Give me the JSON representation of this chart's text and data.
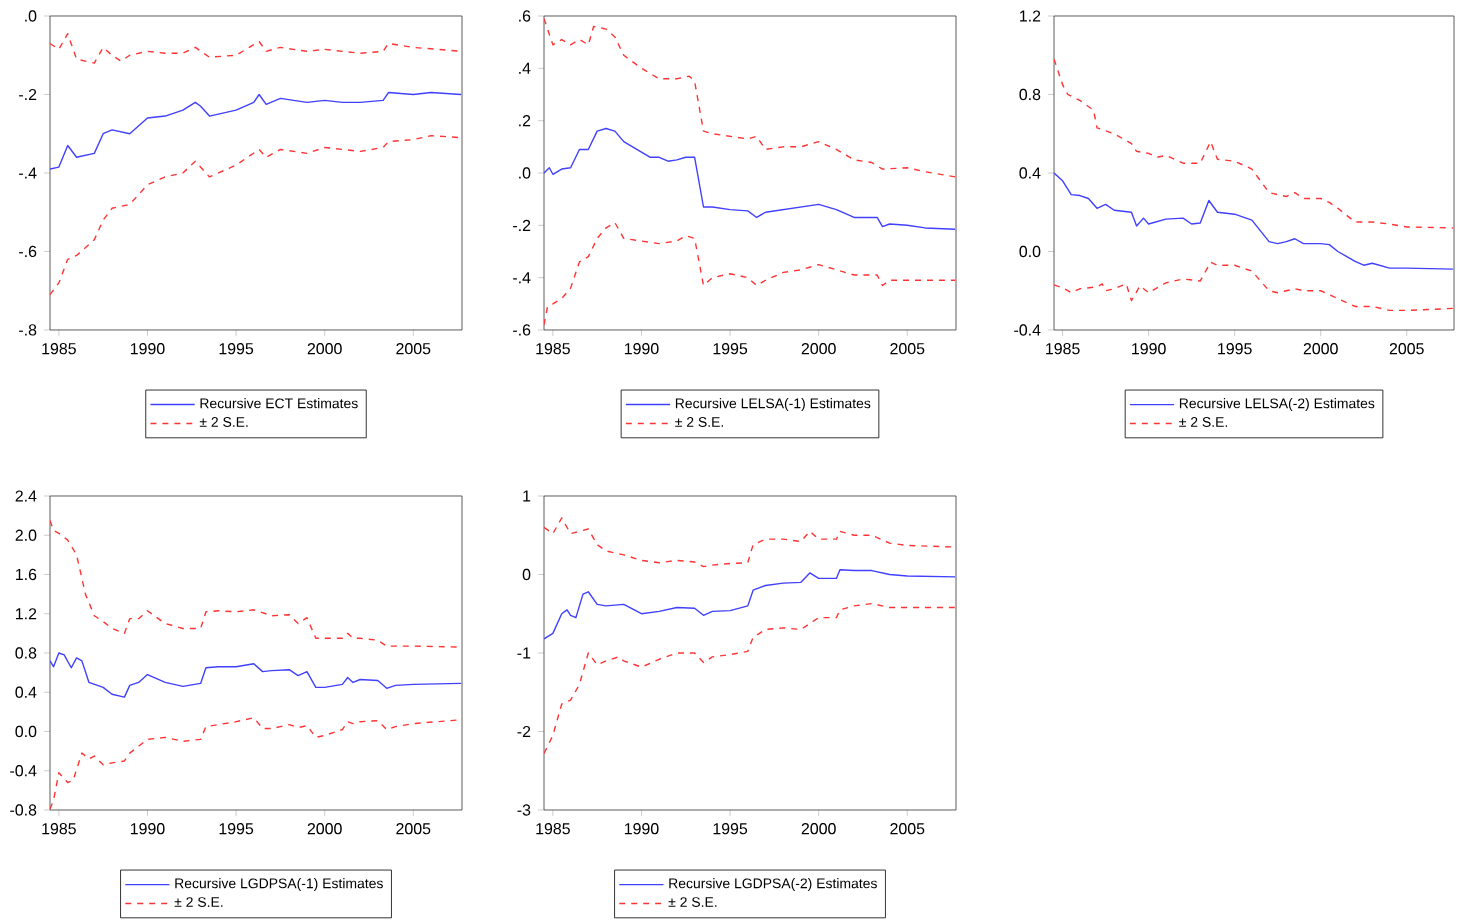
{
  "chart_data": [
    {
      "type": "line",
      "legend": "bottom",
      "xlim": [
        1984.5,
        2007.75
      ],
      "xticks": [
        1985,
        1990,
        1995,
        2000,
        2005
      ],
      "ylim": [
        -0.8,
        0
      ],
      "yticks": [
        {
          "value": -0.8,
          "label": "-.8"
        },
        {
          "value": -0.6,
          "label": "-.6"
        },
        {
          "value": -0.4,
          "label": "-.4"
        },
        {
          "value": -0.2,
          "label": "-.2"
        },
        {
          "value": 0,
          "label": ".0"
        }
      ],
      "series": [
        {
          "name": "Recursive ECT Estimates",
          "color": "#4040ff",
          "line_style": "solid",
          "x": [
            1984.5,
            1985,
            1985.5,
            1986,
            1987,
            1987.5,
            1988,
            1989,
            1990,
            1991,
            1992,
            1992.7,
            1993,
            1993.5,
            1995,
            1996,
            1996.3,
            1996.7,
            1997.5,
            1999,
            2000,
            2001,
            2002,
            2003.3,
            2003.6,
            2005,
            2006,
            2007.7
          ],
          "values": [
            -0.39,
            -0.385,
            -0.33,
            -0.36,
            -0.35,
            -0.3,
            -0.29,
            -0.3,
            -0.26,
            -0.255,
            -0.24,
            -0.22,
            -0.23,
            -0.255,
            -0.24,
            -0.22,
            -0.2,
            -0.225,
            -0.21,
            -0.22,
            -0.215,
            -0.22,
            -0.22,
            -0.215,
            -0.195,
            -0.2,
            -0.195,
            -0.2
          ]
        },
        {
          "name": "± 2 S.E.",
          "color": "#ff3333",
          "line_style": "dashed",
          "x": [
            1984.5,
            1985,
            1985.5,
            1986,
            1987,
            1987.5,
            1988,
            1988.5,
            1989,
            1990,
            1991,
            1992,
            1992.7,
            1993.5,
            1995,
            1996.3,
            1996.7,
            1997.5,
            1999,
            2000,
            2002,
            2003.3,
            2003.6,
            2005,
            2007.7
          ],
          "values": [
            -0.07,
            -0.085,
            -0.045,
            -0.11,
            -0.12,
            -0.08,
            -0.1,
            -0.115,
            -0.1,
            -0.09,
            -0.095,
            -0.095,
            -0.08,
            -0.105,
            -0.1,
            -0.065,
            -0.09,
            -0.08,
            -0.09,
            -0.085,
            -0.095,
            -0.09,
            -0.07,
            -0.08,
            -0.09
          ]
        },
        {
          "color": "#ff3333",
          "line_style": "dashed",
          "x": [
            1984.5,
            1985,
            1985.5,
            1986,
            1987,
            1987.5,
            1988,
            1989,
            1990,
            1991,
            1992,
            1992.7,
            1993.5,
            1995,
            1996.3,
            1996.7,
            1997.5,
            1999,
            2000,
            2002,
            2003.3,
            2003.6,
            2005,
            2006,
            2007.7
          ],
          "values": [
            -0.71,
            -0.68,
            -0.62,
            -0.61,
            -0.57,
            -0.52,
            -0.49,
            -0.48,
            -0.43,
            -0.41,
            -0.4,
            -0.37,
            -0.41,
            -0.38,
            -0.34,
            -0.36,
            -0.34,
            -0.35,
            -0.335,
            -0.345,
            -0.335,
            -0.32,
            -0.315,
            -0.305,
            -0.31
          ]
        }
      ]
    },
    {
      "type": "line",
      "legend": "bottom",
      "xlim": [
        1984.5,
        2007.75
      ],
      "xticks": [
        1985,
        1990,
        1995,
        2000,
        2005
      ],
      "ylim": [
        -0.6,
        0.6
      ],
      "yticks": [
        {
          "value": -0.6,
          "label": "-.6"
        },
        {
          "value": -0.4,
          "label": "-.4"
        },
        {
          "value": -0.2,
          "label": "-.2"
        },
        {
          "value": 0,
          "label": ".0"
        },
        {
          "value": 0.2,
          "label": ".2"
        },
        {
          "value": 0.4,
          "label": ".4"
        },
        {
          "value": 0.6,
          "label": ".6"
        }
      ],
      "series": [
        {
          "name": "Recursive LELSA(-1) Estimates",
          "color": "#4040ff",
          "line_style": "solid",
          "x": [
            1984.5,
            1984.8,
            1985,
            1985.5,
            1986,
            1986.5,
            1987,
            1987.5,
            1988,
            1988.5,
            1989,
            1990,
            1990.5,
            1991,
            1991.5,
            1992,
            1992.5,
            1993,
            1993.5,
            1994,
            1995,
            1996,
            1996.5,
            1997,
            1998,
            1999,
            2000,
            2001,
            2002,
            2003.3,
            2003.6,
            2004,
            2005,
            2006,
            2007.7
          ],
          "values": [
            0.0,
            0.02,
            -0.005,
            0.015,
            0.02,
            0.09,
            0.09,
            0.16,
            0.17,
            0.16,
            0.12,
            0.08,
            0.06,
            0.06,
            0.045,
            0.05,
            0.06,
            0.06,
            -0.13,
            -0.13,
            -0.14,
            -0.145,
            -0.17,
            -0.15,
            -0.14,
            -0.13,
            -0.12,
            -0.14,
            -0.17,
            -0.17,
            -0.205,
            -0.195,
            -0.2,
            -0.21,
            -0.215
          ]
        },
        {
          "name": "± 2 S.E.",
          "color": "#ff3333",
          "line_style": "dashed",
          "x": [
            1984.5,
            1985,
            1985.5,
            1986,
            1986.5,
            1987,
            1987.3,
            1988,
            1988.5,
            1989,
            1990,
            1991,
            1992,
            1992.7,
            1993,
            1993.5,
            1994,
            1995,
            1996,
            1996.5,
            1997,
            1998,
            1999,
            2000,
            2001,
            2002,
            2003,
            2003.6,
            2005,
            2006,
            2007.7
          ],
          "values": [
            0.59,
            0.49,
            0.51,
            0.49,
            0.51,
            0.49,
            0.56,
            0.55,
            0.52,
            0.45,
            0.4,
            0.36,
            0.36,
            0.37,
            0.35,
            0.16,
            0.15,
            0.14,
            0.13,
            0.14,
            0.09,
            0.1,
            0.1,
            0.12,
            0.09,
            0.05,
            0.04,
            0.015,
            0.02,
            0.005,
            -0.015
          ]
        },
        {
          "color": "#ff3333",
          "line_style": "dashed",
          "x": [
            1984.5,
            1984.7,
            1985,
            1985.5,
            1986,
            1986.5,
            1987,
            1987.5,
            1988,
            1988.5,
            1989,
            1990,
            1991,
            1992,
            1992.5,
            1993,
            1993.5,
            1994,
            1995,
            1996,
            1996.5,
            1997,
            1998,
            1999,
            2000,
            2001,
            2002,
            2003.3,
            2003.6,
            2004,
            2005,
            2007.7
          ],
          "values": [
            -0.58,
            -0.51,
            -0.5,
            -0.48,
            -0.44,
            -0.34,
            -0.32,
            -0.25,
            -0.21,
            -0.19,
            -0.25,
            -0.26,
            -0.27,
            -0.26,
            -0.24,
            -0.25,
            -0.43,
            -0.4,
            -0.385,
            -0.4,
            -0.43,
            -0.41,
            -0.38,
            -0.37,
            -0.35,
            -0.37,
            -0.39,
            -0.39,
            -0.43,
            -0.41,
            -0.41,
            -0.41
          ]
        }
      ]
    },
    {
      "type": "line",
      "legend": "bottom",
      "xlim": [
        1984.5,
        2007.75
      ],
      "xticks": [
        1985,
        1990,
        1995,
        2000,
        2005
      ],
      "ylim": [
        -0.4,
        1.2
      ],
      "yticks": [
        {
          "value": -0.4,
          "label": "-0.4"
        },
        {
          "value": 0,
          "label": "0.0"
        },
        {
          "value": 0.4,
          "label": "0.4"
        },
        {
          "value": 0.8,
          "label": "0.8"
        },
        {
          "value": 1.2,
          "label": "1.2"
        }
      ],
      "series": [
        {
          "name": "Recursive LELSA(-2) Estimates",
          "color": "#4040ff",
          "line_style": "solid",
          "x": [
            1984.5,
            1985,
            1985.5,
            1986,
            1986.5,
            1987,
            1987.5,
            1988,
            1989,
            1989.3,
            1989.7,
            1990,
            1991,
            1992,
            1992.5,
            1993,
            1993.5,
            1994,
            1995,
            1996,
            1997,
            1997.5,
            1998,
            1998.5,
            1999,
            2000,
            2000.5,
            2001,
            2002,
            2002.5,
            2003,
            2004,
            2005,
            2007.7
          ],
          "values": [
            0.4,
            0.36,
            0.29,
            0.285,
            0.27,
            0.22,
            0.24,
            0.21,
            0.2,
            0.13,
            0.17,
            0.14,
            0.165,
            0.17,
            0.14,
            0.145,
            0.26,
            0.2,
            0.19,
            0.16,
            0.05,
            0.04,
            0.05,
            0.065,
            0.04,
            0.04,
            0.035,
            0.0,
            -0.05,
            -0.07,
            -0.06,
            -0.085,
            -0.085,
            -0.09
          ]
        },
        {
          "name": "± 2 S.E.",
          "color": "#ff3333",
          "line_style": "dashed",
          "x": [
            1984.5,
            1985,
            1985.3,
            1986,
            1986.8,
            1987,
            1988,
            1989,
            1989.3,
            1990,
            1990.5,
            1991,
            1992,
            1993,
            1993.6,
            1994,
            1995,
            1996,
            1997,
            1998,
            1998.5,
            1999,
            2000,
            2000.5,
            2001,
            2002,
            2003,
            2004,
            2005,
            2007.7
          ],
          "values": [
            0.98,
            0.85,
            0.8,
            0.77,
            0.72,
            0.63,
            0.6,
            0.55,
            0.51,
            0.5,
            0.48,
            0.49,
            0.45,
            0.45,
            0.56,
            0.47,
            0.46,
            0.42,
            0.3,
            0.28,
            0.3,
            0.27,
            0.27,
            0.25,
            0.22,
            0.15,
            0.15,
            0.14,
            0.125,
            0.12
          ]
        },
        {
          "color": "#ff3333",
          "line_style": "dashed",
          "x": [
            1984.5,
            1985,
            1985.5,
            1986,
            1987,
            1987.3,
            1987.5,
            1988,
            1988.7,
            1989,
            1989.5,
            1990,
            1991,
            1992,
            1993,
            1993.6,
            1994,
            1995,
            1996,
            1997,
            1997.5,
            1998.5,
            1999,
            2000,
            2001,
            2002,
            2003,
            2004,
            2005,
            2007.7
          ],
          "values": [
            -0.17,
            -0.185,
            -0.21,
            -0.19,
            -0.18,
            -0.165,
            -0.2,
            -0.19,
            -0.165,
            -0.25,
            -0.175,
            -0.21,
            -0.16,
            -0.14,
            -0.15,
            -0.055,
            -0.07,
            -0.07,
            -0.1,
            -0.2,
            -0.21,
            -0.19,
            -0.2,
            -0.2,
            -0.24,
            -0.28,
            -0.28,
            -0.3,
            -0.3,
            -0.29
          ]
        }
      ]
    },
    {
      "type": "line",
      "legend": "bottom",
      "xlim": [
        1984.5,
        2007.75
      ],
      "xticks": [
        1985,
        1990,
        1995,
        2000,
        2005
      ],
      "ylim": [
        -0.8,
        2.4
      ],
      "yticks": [
        {
          "value": -0.8,
          "label": "-0.8"
        },
        {
          "value": -0.4,
          "label": "-0.4"
        },
        {
          "value": 0,
          "label": "0.0"
        },
        {
          "value": 0.4,
          "label": "0.4"
        },
        {
          "value": 0.8,
          "label": "0.8"
        },
        {
          "value": 1.2,
          "label": "1.2"
        },
        {
          "value": 1.6,
          "label": "1.6"
        },
        {
          "value": 2.0,
          "label": "2.0"
        },
        {
          "value": 2.4,
          "label": "2.4"
        }
      ],
      "series": [
        {
          "name": "Recursive LGDPSA(-1) Estimates",
          "color": "#4040ff",
          "line_style": "solid",
          "x": [
            1984.5,
            1984.7,
            1985,
            1985.3,
            1985.7,
            1986,
            1986.3,
            1986.7,
            1987.5,
            1988,
            1988.7,
            1989,
            1989.5,
            1990,
            1991,
            1992,
            1993,
            1993.3,
            1994,
            1995,
            1996,
            1996.5,
            1997,
            1998,
            1998.5,
            1999,
            1999.5,
            2000,
            2001,
            2001.3,
            2001.6,
            2002,
            2003,
            2003.5,
            2004,
            2005,
            2007.7
          ],
          "values": [
            0.72,
            0.66,
            0.8,
            0.78,
            0.65,
            0.75,
            0.72,
            0.5,
            0.45,
            0.38,
            0.35,
            0.47,
            0.5,
            0.58,
            0.5,
            0.46,
            0.49,
            0.65,
            0.66,
            0.66,
            0.69,
            0.61,
            0.62,
            0.63,
            0.57,
            0.61,
            0.45,
            0.45,
            0.48,
            0.55,
            0.5,
            0.53,
            0.52,
            0.44,
            0.47,
            0.48,
            0.49
          ]
        },
        {
          "name": "± 2 S.E.",
          "color": "#ff3333",
          "line_style": "dashed",
          "x": [
            1984.5,
            1984.7,
            1985,
            1985.5,
            1986,
            1986.5,
            1987,
            1987.5,
            1988,
            1988.7,
            1989,
            1989.5,
            1990,
            1991,
            1992,
            1993,
            1993.3,
            1994,
            1995,
            1996,
            1997,
            1998,
            1998.5,
            1999,
            1999.5,
            2000,
            2001,
            2001.3,
            2001.6,
            2002,
            2003,
            2003.5,
            2005,
            2007.7
          ],
          "values": [
            2.15,
            2.05,
            2.02,
            1.95,
            1.8,
            1.4,
            1.18,
            1.12,
            1.05,
            1.0,
            1.15,
            1.15,
            1.23,
            1.1,
            1.05,
            1.05,
            1.22,
            1.23,
            1.22,
            1.24,
            1.18,
            1.19,
            1.1,
            1.16,
            0.95,
            0.95,
            0.95,
            1.0,
            0.95,
            0.95,
            0.93,
            0.87,
            0.87,
            0.86
          ]
        },
        {
          "color": "#ff3333",
          "line_style": "dashed",
          "x": [
            1984.5,
            1984.7,
            1985,
            1985.5,
            1985.8,
            1986.3,
            1986.7,
            1987,
            1987.5,
            1988,
            1988.7,
            1989,
            1990,
            1991,
            1992,
            1993,
            1993.3,
            1994,
            1995,
            1996,
            1996.5,
            1997,
            1998,
            1998.5,
            1999,
            1999.5,
            2000,
            2001,
            2001.3,
            2001.6,
            2002,
            2003,
            2003.5,
            2004,
            2005,
            2007.7
          ],
          "values": [
            -0.79,
            -0.7,
            -0.42,
            -0.52,
            -0.5,
            -0.22,
            -0.28,
            -0.25,
            -0.34,
            -0.32,
            -0.3,
            -0.22,
            -0.08,
            -0.06,
            -0.1,
            -0.08,
            0.05,
            0.07,
            0.1,
            0.14,
            0.03,
            0.03,
            0.07,
            0.04,
            0.06,
            -0.06,
            -0.04,
            0.02,
            0.1,
            0.08,
            0.1,
            0.11,
            0.02,
            0.05,
            0.08,
            0.12
          ]
        }
      ]
    },
    {
      "type": "line",
      "legend": "bottom",
      "xlim": [
        1984.5,
        2007.75
      ],
      "xticks": [
        1985,
        1990,
        1995,
        2000,
        2005
      ],
      "ylim": [
        -3,
        1
      ],
      "yticks": [
        -3,
        -2,
        -1,
        0,
        1
      ],
      "series": [
        {
          "name": "Recursive LGDPSA(-2) Estimates",
          "color": "#4040ff",
          "line_style": "solid",
          "x": [
            1984.5,
            1985,
            1985.5,
            1985.8,
            1986,
            1986.3,
            1986.7,
            1987,
            1987.5,
            1988,
            1989,
            1990,
            1991,
            1992,
            1993,
            1993.5,
            1994,
            1995,
            1996,
            1996.3,
            1997,
            1998,
            1999,
            1999.5,
            2000,
            2001,
            2001.2,
            2002,
            2003,
            2004,
            2005,
            2007.7
          ],
          "values": [
            -0.82,
            -0.75,
            -0.5,
            -0.45,
            -0.52,
            -0.55,
            -0.25,
            -0.22,
            -0.38,
            -0.4,
            -0.38,
            -0.5,
            -0.47,
            -0.42,
            -0.43,
            -0.52,
            -0.47,
            -0.46,
            -0.4,
            -0.2,
            -0.14,
            -0.11,
            -0.1,
            0.02,
            -0.05,
            -0.05,
            0.06,
            0.05,
            0.05,
            0.0,
            -0.02,
            -0.03
          ]
        },
        {
          "name": "± 2 S.E.",
          "color": "#ff3333",
          "line_style": "dashed",
          "x": [
            1984.5,
            1985,
            1985.5,
            1986,
            1986.5,
            1987,
            1987.5,
            1988,
            1989,
            1990,
            1991,
            1992,
            1993,
            1993.5,
            1994,
            1995,
            1996,
            1996.3,
            1997,
            1998,
            1999,
            1999.5,
            2000,
            2001,
            2001.2,
            2002,
            2003,
            2004,
            2005,
            2007.7
          ],
          "values": [
            0.6,
            0.52,
            0.72,
            0.52,
            0.55,
            0.58,
            0.38,
            0.3,
            0.25,
            0.18,
            0.15,
            0.18,
            0.16,
            0.1,
            0.12,
            0.14,
            0.15,
            0.38,
            0.45,
            0.45,
            0.42,
            0.55,
            0.45,
            0.45,
            0.55,
            0.5,
            0.5,
            0.4,
            0.37,
            0.35
          ]
        },
        {
          "color": "#ff3333",
          "line_style": "dashed",
          "x": [
            1984.5,
            1985,
            1985.5,
            1986,
            1986.5,
            1987,
            1987.5,
            1988,
            1988.7,
            1989,
            1990,
            1991,
            1992,
            1993,
            1993.5,
            1994,
            1995,
            1996,
            1996.3,
            1997,
            1998,
            1999,
            2000,
            2001,
            2001.2,
            2002,
            2003,
            2004,
            2005,
            2007.7
          ],
          "values": [
            -2.28,
            -2.05,
            -1.65,
            -1.6,
            -1.4,
            -1.0,
            -1.15,
            -1.1,
            -1.05,
            -1.1,
            -1.18,
            -1.08,
            -1.0,
            -1.0,
            -1.12,
            -1.05,
            -1.02,
            -0.98,
            -0.8,
            -0.7,
            -0.68,
            -0.7,
            -0.55,
            -0.55,
            -0.45,
            -0.4,
            -0.37,
            -0.42,
            -0.42,
            -0.42
          ]
        }
      ]
    }
  ]
}
